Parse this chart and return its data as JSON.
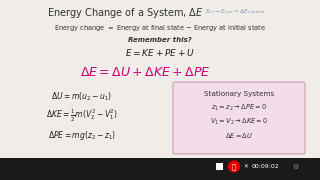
{
  "bg_color": "#f0ede8",
  "title": "Energy Change of a System, $\\Delta E$",
  "title_suffix": "$E_{in} - E_{out} = \\Delta E_{system}$",
  "line1": "Energy change $=$ Energy at final state $-$ Energy at initial state",
  "remember": "Remember this?",
  "eq1": "$E = KE + PE + U$",
  "big_eq": "$\\Delta E = \\Delta U + \\Delta KE + \\Delta PE$",
  "eq_dU": "$\\Delta U = m(u_2 - u_1)$",
  "eq_dKE": "$\\Delta KE = \\frac{1}{2}m(V_2^2 - V_1^2)$",
  "eq_dPE": "$\\Delta PE = mg(z_2 - z_1)$",
  "box_title": "Stationary Systems",
  "box_line1": "$z_1 = z_2 \\rightarrow \\Delta PE = 0$",
  "box_line2": "$V_1 = V_2 \\rightarrow \\Delta KE = 0$",
  "box_line3": "$\\Delta E = \\Delta U$",
  "title_color": "#333333",
  "suffix_color": "#8899bb",
  "line1_color": "#333333",
  "remember_color": "#333333",
  "eq1_color": "#222222",
  "big_eq_color": "#cc0077",
  "left_eq_color": "#222222",
  "box_bg": "#f2dde8",
  "box_border": "#c8a0b8",
  "bar_color": "#1a1a1a",
  "timer_color": "#ffffff",
  "red_circle": "#dd0000",
  "timer_text": "00:09:02"
}
